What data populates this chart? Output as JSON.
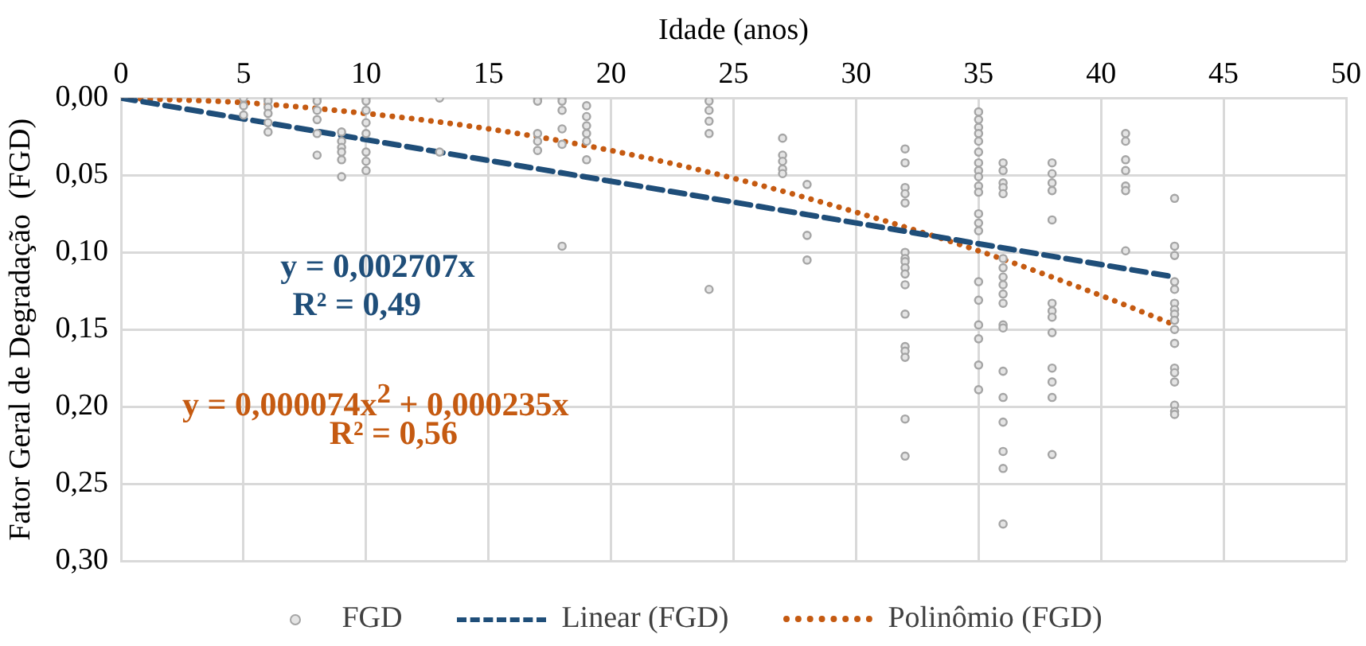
{
  "chart_data": {
    "type": "scatter",
    "xlabel": "Idade (anos)",
    "ylabel": "Fator Geral de Degradação  (FGD)",
    "xlim": [
      0,
      50
    ],
    "xticks": [
      0,
      5,
      10,
      15,
      20,
      25,
      30,
      35,
      40,
      45,
      50
    ],
    "ylim": [
      0.3,
      0
    ],
    "yticks": [
      {
        "value": 0,
        "label": "0,00"
      },
      {
        "value": 0.05,
        "label": "0,05"
      },
      {
        "value": 0.1,
        "label": "0,10"
      },
      {
        "value": 0.15,
        "label": "0,15"
      },
      {
        "value": 0.2,
        "label": "0,20"
      },
      {
        "value": 0.25,
        "label": "0,25"
      },
      {
        "value": 0.3,
        "label": "0,30"
      }
    ],
    "grid": true,
    "legend": "bottom",
    "marker": "circle",
    "series": [
      {
        "name": "FGD",
        "color": "#a5a5a5",
        "x": [
          5,
          5,
          5,
          6,
          6,
          6,
          6,
          6,
          6,
          8,
          8,
          8,
          8,
          8,
          8,
          9,
          9,
          9,
          9,
          9,
          9,
          10,
          10,
          10,
          10,
          10,
          10,
          10,
          10,
          13,
          13,
          17,
          17,
          17,
          17,
          17,
          18,
          18,
          18,
          18,
          18,
          18,
          19,
          19,
          19,
          19,
          19,
          19,
          24,
          24,
          24,
          24,
          24,
          27,
          27,
          27,
          27,
          27,
          28,
          28,
          28,
          32,
          32,
          32,
          32,
          32,
          32,
          32,
          32,
          32,
          32,
          32,
          32,
          32,
          32,
          32,
          32,
          32,
          35,
          35,
          35,
          35,
          35,
          35,
          35,
          35,
          35,
          35,
          35,
          35,
          35,
          35,
          35,
          35,
          35,
          35,
          35,
          35,
          36,
          36,
          36,
          36,
          36,
          36,
          36,
          36,
          36,
          36,
          36,
          36,
          36,
          36,
          36,
          36,
          36,
          36,
          36,
          38,
          38,
          38,
          38,
          38,
          38,
          38,
          38,
          38,
          38,
          38,
          38,
          38,
          41,
          41,
          41,
          41,
          41,
          41,
          41,
          43,
          43,
          43,
          43,
          43,
          43,
          43,
          43,
          43,
          43,
          43,
          43,
          43,
          43,
          43,
          43,
          43
        ],
        "values": [
          0,
          0.005,
          0.011,
          0,
          0.002,
          0.006,
          0.01,
          0.016,
          0.022,
          0,
          0.002,
          0.008,
          0.014,
          0.023,
          0.037,
          0.022,
          0.028,
          0.032,
          0.035,
          0.04,
          0.051,
          0,
          0.002,
          0.008,
          0.016,
          0.023,
          0.035,
          0.041,
          0.047,
          0,
          0.035,
          0,
          0.002,
          0.023,
          0.028,
          0.034,
          0,
          0.002,
          0.008,
          0.02,
          0.03,
          0.096,
          0.005,
          0.012,
          0.018,
          0.023,
          0.028,
          0.04,
          0.002,
          0.008,
          0.015,
          0.023,
          0.124,
          0.026,
          0.037,
          0.041,
          0.046,
          0.049,
          0.056,
          0.089,
          0.105,
          0.033,
          0.042,
          0.058,
          0.062,
          0.068,
          0.1,
          0.104,
          0.106,
          0.11,
          0.114,
          0.121,
          0.14,
          0.161,
          0.164,
          0.168,
          0.208,
          0.232,
          0.009,
          0.014,
          0.019,
          0.023,
          0.028,
          0.035,
          0.042,
          0.047,
          0.051,
          0.057,
          0.061,
          0.075,
          0.081,
          0.086,
          0.119,
          0.131,
          0.147,
          0.156,
          0.173,
          0.189,
          0.042,
          0.047,
          0.055,
          0.058,
          0.062,
          0.104,
          0.11,
          0.116,
          0.121,
          0.127,
          0.133,
          0.147,
          0.149,
          0.177,
          0.194,
          0.21,
          0.229,
          0.24,
          0.276,
          0.042,
          0.049,
          0.055,
          0.06,
          0.079,
          0.133,
          0.138,
          0.142,
          0.152,
          0.175,
          0.184,
          0.194,
          0.231,
          0.023,
          0.028,
          0.04,
          0.047,
          0.057,
          0.06,
          0.099,
          0.065,
          0.096,
          0.102,
          0.119,
          0.124,
          0.133,
          0.137,
          0.14,
          0.144,
          0.15,
          0.159,
          0.175,
          0.178,
          0.184,
          0.199,
          0.203,
          0.205
        ]
      },
      {
        "name": "Linear (FGD)",
        "type": "line",
        "color": "#1f4e79",
        "line_style": "dashed",
        "marker": "none",
        "x": [
          0,
          43
        ],
        "values": [
          0,
          0.116
        ]
      },
      {
        "name": "Polinômio (FGD)",
        "type": "line",
        "color": "#c55a11",
        "line_style": "dotted",
        "marker": "none",
        "x": [
          0,
          5,
          10,
          15,
          20,
          25,
          30,
          35,
          40,
          43
        ],
        "values": [
          0,
          0.003,
          0.01,
          0.02,
          0.034,
          0.052,
          0.074,
          0.099,
          0.128,
          0.147
        ]
      }
    ],
    "annotations": [
      "y = 0,002707x",
      "R² = 0,49",
      "y = 0,000074x$^{2}$ + 0,000235x",
      "R² = 0,56"
    ]
  }
}
